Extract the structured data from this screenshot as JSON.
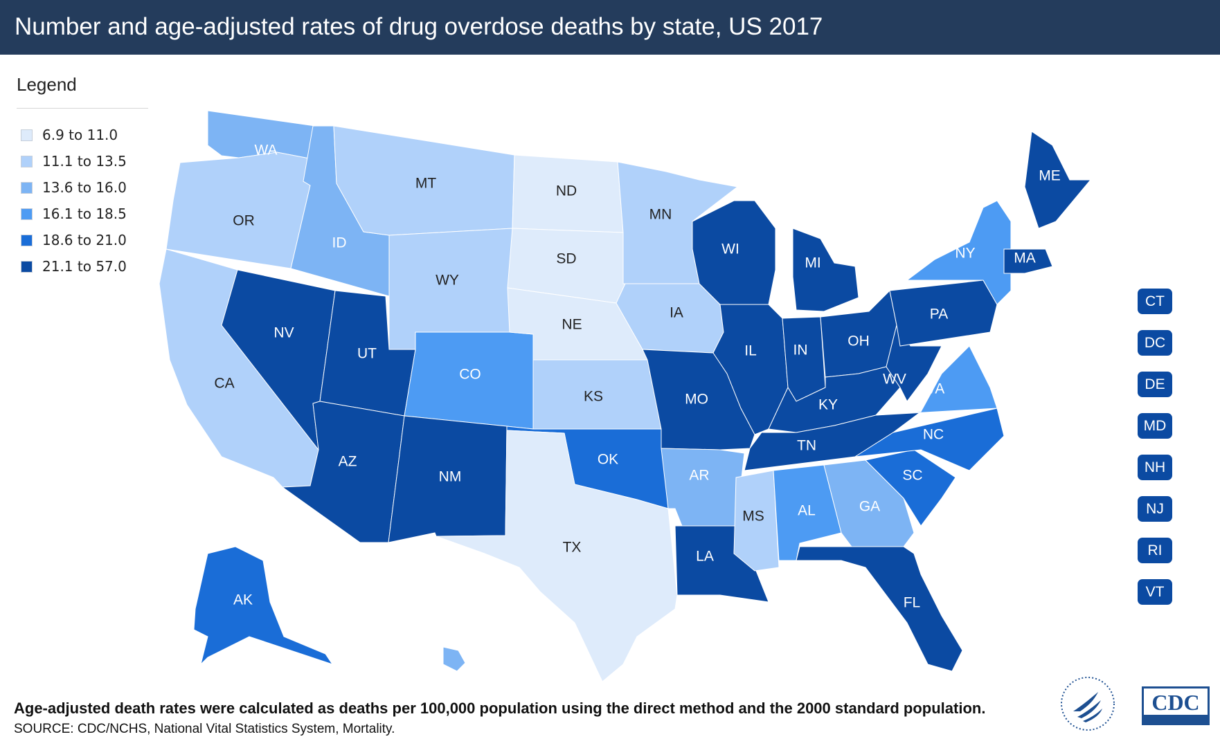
{
  "header": {
    "title": "Number and age-adjusted rates of drug overdose deaths by state, US 2017"
  },
  "legend": {
    "title": "Legend",
    "items": [
      {
        "label": "6.9 to 11.0",
        "color": "#deebfb"
      },
      {
        "label": "11.1 to 13.5",
        "color": "#b0d1fa"
      },
      {
        "label": "13.6 to 16.0",
        "color": "#7db4f4"
      },
      {
        "label": "16.1 to 18.5",
        "color": "#4d9bf3"
      },
      {
        "label": "18.6 to 21.0",
        "color": "#1a6dd7"
      },
      {
        "label": "21.1 to 57.0",
        "color": "#0b4aa2"
      }
    ]
  },
  "states": [
    {
      "abbr": "WA",
      "class": 2
    },
    {
      "abbr": "OR",
      "class": 1
    },
    {
      "abbr": "CA",
      "class": 1
    },
    {
      "abbr": "ID",
      "class": 2
    },
    {
      "abbr": "NV",
      "class": 5
    },
    {
      "abbr": "UT",
      "class": 5
    },
    {
      "abbr": "AZ",
      "class": 5
    },
    {
      "abbr": "MT",
      "class": 1
    },
    {
      "abbr": "WY",
      "class": 1
    },
    {
      "abbr": "CO",
      "class": 3
    },
    {
      "abbr": "NM",
      "class": 5
    },
    {
      "abbr": "ND",
      "class": 0
    },
    {
      "abbr": "SD",
      "class": 0
    },
    {
      "abbr": "NE",
      "class": 0
    },
    {
      "abbr": "KS",
      "class": 1
    },
    {
      "abbr": "OK",
      "class": 4
    },
    {
      "abbr": "TX",
      "class": 0
    },
    {
      "abbr": "MN",
      "class": 1
    },
    {
      "abbr": "IA",
      "class": 1
    },
    {
      "abbr": "MO",
      "class": 5
    },
    {
      "abbr": "AR",
      "class": 2
    },
    {
      "abbr": "LA",
      "class": 5
    },
    {
      "abbr": "WI",
      "class": 5
    },
    {
      "abbr": "IL",
      "class": 5
    },
    {
      "abbr": "MI",
      "class": 5
    },
    {
      "abbr": "IN",
      "class": 5
    },
    {
      "abbr": "OH",
      "class": 5
    },
    {
      "abbr": "KY",
      "class": 5
    },
    {
      "abbr": "TN",
      "class": 5
    },
    {
      "abbr": "MS",
      "class": 1
    },
    {
      "abbr": "AL",
      "class": 3
    },
    {
      "abbr": "GA",
      "class": 2
    },
    {
      "abbr": "FL",
      "class": 5
    },
    {
      "abbr": "SC",
      "class": 4
    },
    {
      "abbr": "NC",
      "class": 4
    },
    {
      "abbr": "VA",
      "class": 3
    },
    {
      "abbr": "WV",
      "class": 5
    },
    {
      "abbr": "PA",
      "class": 5
    },
    {
      "abbr": "NY",
      "class": 3
    },
    {
      "abbr": "ME",
      "class": 5
    },
    {
      "abbr": "MA",
      "class": 5
    },
    {
      "abbr": "AK",
      "class": 4
    },
    {
      "abbr": "HI",
      "class": 2
    },
    {
      "abbr": "VT",
      "class": 5
    },
    {
      "abbr": "NH",
      "class": 5
    },
    {
      "abbr": "CT",
      "class": 5
    },
    {
      "abbr": "RI",
      "class": 5
    },
    {
      "abbr": "NJ",
      "class": 5
    },
    {
      "abbr": "DE",
      "class": 5
    },
    {
      "abbr": "MD",
      "class": 5
    },
    {
      "abbr": "DC",
      "class": 5
    }
  ],
  "small_states": [
    "CT",
    "DC",
    "DE",
    "MD",
    "NH",
    "NJ",
    "RI",
    "VT"
  ],
  "footnote": "Age-adjusted death rates were calculated as deaths per 100,000 population using the direct method and the 2000 standard population.",
  "source": "SOURCE: CDC/NCHS, National Vital Statistics System, Mortality.",
  "logos": {
    "cdc_text": "CDC"
  }
}
